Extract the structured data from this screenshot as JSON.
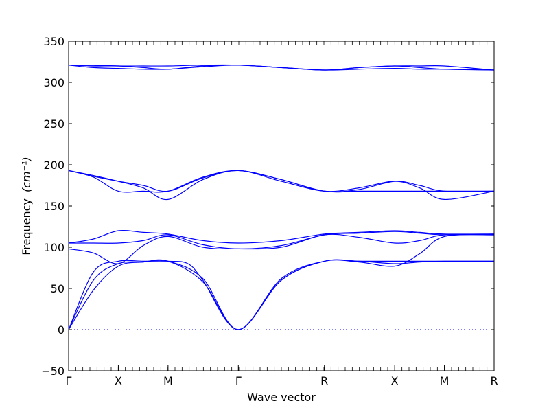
{
  "chart_data": {
    "type": "line",
    "xlabel": "Wave vector",
    "ylabel": "Frequency",
    "ylabel_unit": "(cm⁻¹)",
    "ylim": [
      -50,
      350
    ],
    "yticks": [
      -50,
      0,
      50,
      100,
      150,
      200,
      250,
      300,
      350
    ],
    "xlim": [
      0,
      5.196
    ],
    "high_symmetry_points": [
      {
        "label": "Γ",
        "x": 0
      },
      {
        "label": "X",
        "x": 0.5
      },
      {
        "label": "M",
        "x": 1.0
      },
      {
        "label": "Γ",
        "x": 1.707
      },
      {
        "label": "R",
        "x": 2.573
      },
      {
        "label": "X",
        "x": 3.28
      },
      {
        "label": "M",
        "x": 3.78
      },
      {
        "label": "R",
        "x": 4.28
      }
    ],
    "zero_line": true,
    "line_color": "#0000ff",
    "series": [
      {
        "values": [
          [
            0,
            0
          ],
          [
            0.25,
            48
          ],
          [
            0.5,
            77
          ],
          [
            0.75,
            82
          ],
          [
            1.0,
            83
          ],
          [
            1.35,
            58
          ],
          [
            1.707,
            0
          ],
          [
            2.14,
            60
          ],
          [
            2.573,
            83
          ],
          [
            2.92,
            83
          ],
          [
            3.28,
            83
          ],
          [
            3.53,
            83
          ],
          [
            3.78,
            83
          ],
          [
            4.28,
            83
          ]
        ]
      },
      {
        "values": [
          [
            0,
            0
          ],
          [
            0.25,
            60
          ],
          [
            0.5,
            80
          ],
          [
            0.75,
            82
          ],
          [
            1.0,
            83
          ],
          [
            1.35,
            62
          ],
          [
            1.707,
            0
          ],
          [
            2.14,
            62
          ],
          [
            2.573,
            83
          ],
          [
            2.92,
            82
          ],
          [
            3.28,
            77
          ],
          [
            3.53,
            92
          ],
          [
            3.78,
            113
          ],
          [
            4.28,
            115
          ]
        ]
      },
      {
        "values": [
          [
            0,
            0
          ],
          [
            0.25,
            70
          ],
          [
            0.5,
            83
          ],
          [
            0.75,
            83
          ],
          [
            1.0,
            83
          ],
          [
            1.2,
            80
          ],
          [
            1.35,
            60
          ],
          [
            1.707,
            0
          ],
          [
            2.14,
            60
          ],
          [
            2.573,
            83
          ],
          [
            2.92,
            83
          ],
          [
            3.28,
            80
          ],
          [
            3.53,
            82
          ],
          [
            3.78,
            83
          ],
          [
            4.28,
            83
          ]
        ]
      },
      {
        "values": [
          [
            0,
            98
          ],
          [
            0.25,
            93
          ],
          [
            0.5,
            80
          ],
          [
            0.75,
            102
          ],
          [
            1.0,
            113
          ],
          [
            1.35,
            100
          ],
          [
            1.707,
            98
          ],
          [
            2.14,
            100
          ],
          [
            2.573,
            115
          ],
          [
            2.92,
            112
          ],
          [
            3.28,
            105
          ],
          [
            3.53,
            108
          ],
          [
            3.78,
            115
          ],
          [
            4.28,
            115
          ]
        ]
      },
      {
        "values": [
          [
            0,
            105
          ],
          [
            0.25,
            105
          ],
          [
            0.5,
            105
          ],
          [
            0.75,
            108
          ],
          [
            1.0,
            115
          ],
          [
            1.35,
            103
          ],
          [
            1.707,
            98
          ],
          [
            2.14,
            102
          ],
          [
            2.573,
            115
          ],
          [
            2.92,
            117
          ],
          [
            3.28,
            119
          ],
          [
            3.53,
            117
          ],
          [
            3.78,
            115
          ],
          [
            4.28,
            116
          ]
        ]
      },
      {
        "values": [
          [
            0,
            105
          ],
          [
            0.25,
            110
          ],
          [
            0.5,
            120
          ],
          [
            0.75,
            118
          ],
          [
            1.0,
            116
          ],
          [
            1.35,
            108
          ],
          [
            1.707,
            105
          ],
          [
            2.14,
            108
          ],
          [
            2.573,
            116
          ],
          [
            2.92,
            118
          ],
          [
            3.28,
            120
          ],
          [
            3.53,
            118
          ],
          [
            3.78,
            116
          ],
          [
            4.28,
            116
          ]
        ]
      },
      {
        "values": [
          [
            0,
            193
          ],
          [
            0.25,
            185
          ],
          [
            0.5,
            168
          ],
          [
            0.75,
            168
          ],
          [
            1.0,
            168
          ],
          [
            1.35,
            185
          ],
          [
            1.707,
            193
          ],
          [
            2.14,
            182
          ],
          [
            2.573,
            168
          ],
          [
            2.92,
            168
          ],
          [
            3.28,
            168
          ],
          [
            3.53,
            168
          ],
          [
            3.78,
            168
          ],
          [
            4.28,
            168
          ]
        ]
      },
      {
        "values": [
          [
            0,
            193
          ],
          [
            0.25,
            186
          ],
          [
            0.5,
            180
          ],
          [
            0.75,
            175
          ],
          [
            1.0,
            168
          ],
          [
            1.35,
            184
          ],
          [
            1.707,
            193
          ],
          [
            2.14,
            182
          ],
          [
            2.573,
            168
          ],
          [
            2.92,
            170
          ],
          [
            3.28,
            180
          ],
          [
            3.53,
            175
          ],
          [
            3.78,
            168
          ],
          [
            4.28,
            168
          ]
        ]
      },
      {
        "values": [
          [
            0,
            193
          ],
          [
            0.25,
            187
          ],
          [
            0.5,
            180
          ],
          [
            0.75,
            172
          ],
          [
            1.0,
            158
          ],
          [
            1.35,
            182
          ],
          [
            1.707,
            193
          ],
          [
            2.14,
            180
          ],
          [
            2.573,
            168
          ],
          [
            2.92,
            172
          ],
          [
            3.28,
            180
          ],
          [
            3.53,
            172
          ],
          [
            3.78,
            158
          ],
          [
            4.28,
            168
          ]
        ]
      },
      {
        "values": [
          [
            0,
            321
          ],
          [
            0.25,
            318
          ],
          [
            0.5,
            317
          ],
          [
            0.75,
            316
          ],
          [
            1.0,
            316
          ],
          [
            1.35,
            319
          ],
          [
            1.707,
            321
          ],
          [
            2.14,
            318
          ],
          [
            2.573,
            315
          ],
          [
            2.92,
            316
          ],
          [
            3.28,
            317
          ],
          [
            3.53,
            316
          ],
          [
            3.78,
            316
          ],
          [
            4.28,
            315
          ]
        ]
      },
      {
        "values": [
          [
            0,
            321
          ],
          [
            0.25,
            320
          ],
          [
            0.5,
            320
          ],
          [
            0.75,
            318
          ],
          [
            1.0,
            316
          ],
          [
            1.35,
            320
          ],
          [
            1.707,
            321
          ],
          [
            2.14,
            318
          ],
          [
            2.573,
            315
          ],
          [
            2.92,
            318
          ],
          [
            3.28,
            320
          ],
          [
            3.53,
            318
          ],
          [
            3.78,
            316
          ],
          [
            4.28,
            315
          ]
        ]
      },
      {
        "values": [
          [
            0,
            321
          ],
          [
            0.25,
            321
          ],
          [
            0.5,
            320
          ],
          [
            0.75,
            320
          ],
          [
            1.0,
            320
          ],
          [
            1.35,
            321
          ],
          [
            1.707,
            321
          ],
          [
            2.14,
            318
          ],
          [
            2.573,
            315
          ],
          [
            2.92,
            318
          ],
          [
            3.28,
            320
          ],
          [
            3.53,
            320
          ],
          [
            3.78,
            320
          ],
          [
            4.28,
            315
          ]
        ]
      }
    ]
  }
}
